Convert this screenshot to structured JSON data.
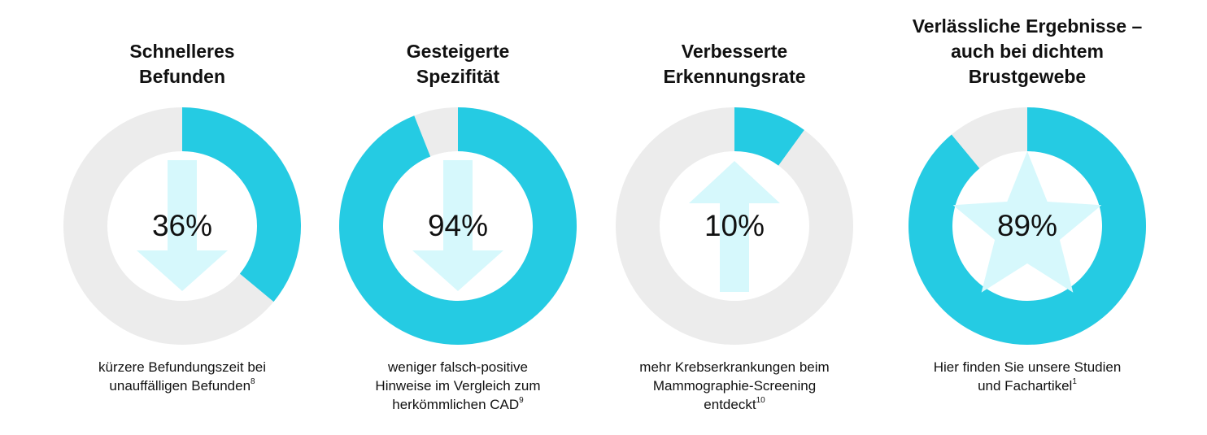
{
  "colors": {
    "accent": "#25cbe3",
    "track": "#ececec",
    "icon": "#d6f8fc",
    "text": "#111111"
  },
  "chart_data": [
    {
      "type": "pie",
      "variant": "donut",
      "percent": 36,
      "value_label": "36%",
      "title_lines": [
        "Schnelleres",
        "Befunden"
      ],
      "icon": "arrow-down-icon",
      "caption_lines": [
        {
          "text": "kürzere Befundungszeit bei",
          "sup": ""
        },
        {
          "text": "unauffälligen Befunden",
          "sup": "8"
        }
      ]
    },
    {
      "type": "pie",
      "variant": "donut",
      "percent": 94,
      "value_label": "94%",
      "title_lines": [
        "Gesteigerte",
        "Spezifität"
      ],
      "icon": "arrow-down-icon",
      "caption_lines": [
        {
          "text": "weniger falsch-positive",
          "sup": ""
        },
        {
          "text": "Hinweise im Vergleich zum",
          "sup": ""
        },
        {
          "text": "herkömmlichen CAD",
          "sup": "9"
        }
      ]
    },
    {
      "type": "pie",
      "variant": "donut",
      "percent": 10,
      "value_label": "10%",
      "title_lines": [
        "Verbesserte",
        "Erkennungsrate"
      ],
      "icon": "arrow-up-icon",
      "caption_lines": [
        {
          "text": "mehr Krebserkrankungen beim",
          "sup": ""
        },
        {
          "text": "Mammographie-Screening",
          "sup": ""
        },
        {
          "text": "entdeckt",
          "sup": "10"
        }
      ]
    },
    {
      "type": "pie",
      "variant": "donut",
      "percent": 89,
      "value_label": "89%",
      "title_lines": [
        "Verlässliche Ergebnisse –",
        "auch bei dichtem",
        "Brustgewebe"
      ],
      "icon": "star-icon",
      "caption_lines": [
        {
          "text": "Hier finden Sie unsere Studien",
          "sup": ""
        },
        {
          "text": "und Fachartikel",
          "sup": "1"
        }
      ]
    }
  ]
}
